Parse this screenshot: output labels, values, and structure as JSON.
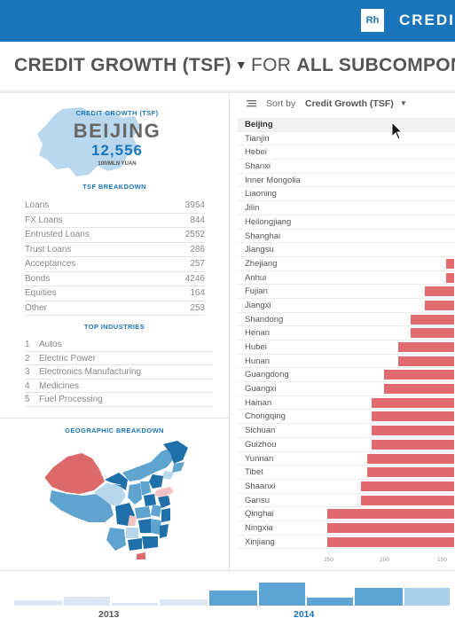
{
  "brand": {
    "logo": "Rh",
    "title": "CREDIT"
  },
  "title": {
    "metric": "CREDIT GROWTH (TSF)",
    "caret": "▼",
    "for_text": "FOR",
    "scope": "ALL SUBCOMPON"
  },
  "province_card": {
    "caption": "CREDIT GROWTH (TSF)",
    "name": "BEIJING",
    "value": "12,556",
    "unit": "100/MLN YUAN"
  },
  "tsf_breakdown": {
    "heading": "TSF BREAKDOWN",
    "rows": [
      {
        "label": "Loans",
        "value": "3954"
      },
      {
        "label": "FX Loans",
        "value": "844"
      },
      {
        "label": "Entrusted Loans",
        "value": "2552"
      },
      {
        "label": "Trust Loans",
        "value": "286"
      },
      {
        "label": "Acceptances",
        "value": "257"
      },
      {
        "label": "Bonds",
        "value": "4246"
      },
      {
        "label": "Equities",
        "value": "164"
      },
      {
        "label": "Other",
        "value": "253"
      }
    ]
  },
  "top_industries": {
    "heading": "TOP INDUSTRIES",
    "rows": [
      {
        "num": "1",
        "name": "Autos"
      },
      {
        "num": "2",
        "name": "Electric Power"
      },
      {
        "num": "3",
        "name": "Electronics Manufacturing"
      },
      {
        "num": "4",
        "name": "Medicines"
      },
      {
        "num": "5",
        "name": "Fuel Processing"
      }
    ]
  },
  "geo": {
    "heading": "GEOGRAPHIC BREAKDOWN"
  },
  "sort": {
    "label": "Sort by",
    "value": "Credit Growth (TSF)",
    "caret": "▼"
  },
  "provinces": [
    {
      "name": "Beijing",
      "bar": 0,
      "active": true
    },
    {
      "name": "Tianjin",
      "bar": 0
    },
    {
      "name": "Hebei",
      "bar": 0
    },
    {
      "name": "Shanxi",
      "bar": 0
    },
    {
      "name": "Inner Mongolia",
      "bar": 0
    },
    {
      "name": "Liaoning",
      "bar": 0
    },
    {
      "name": "Jilin",
      "bar": 0
    },
    {
      "name": "Heilongjiang",
      "bar": 0
    },
    {
      "name": "Shanghai",
      "bar": 0
    },
    {
      "name": "Jiangsu",
      "bar": 0
    },
    {
      "name": "Zhejiang",
      "bar": 9
    },
    {
      "name": "Anhui",
      "bar": 9
    },
    {
      "name": "Fujian",
      "bar": 33
    },
    {
      "name": "Jiangxi",
      "bar": 33
    },
    {
      "name": "Shandong",
      "bar": 49
    },
    {
      "name": "Henan",
      "bar": 49
    },
    {
      "name": "Hubei",
      "bar": 63
    },
    {
      "name": "Hunan",
      "bar": 63
    },
    {
      "name": "Guangdong",
      "bar": 79
    },
    {
      "name": "Guangxi",
      "bar": 79
    },
    {
      "name": "Hainan",
      "bar": 93
    },
    {
      "name": "Chongqing",
      "bar": 93
    },
    {
      "name": "Sichuan",
      "bar": 93
    },
    {
      "name": "Guizhou",
      "bar": 93
    },
    {
      "name": "Yunnan",
      "bar": 98
    },
    {
      "name": "Tibet",
      "bar": 98
    },
    {
      "name": "Shaanxi",
      "bar": 105
    },
    {
      "name": "Gansu",
      "bar": 105
    },
    {
      "name": "Qinghai",
      "bar": 143
    },
    {
      "name": "Ningxia",
      "bar": 143
    },
    {
      "name": "Xinjiang",
      "bar": 143
    }
  ],
  "axis_ticks": [
    "250",
    "200",
    "150"
  ],
  "timeline": {
    "years": [
      "2013",
      "2014"
    ],
    "colors": {
      "past": "#dbe8f3",
      "current": "#5da3d3",
      "current_light": "#a9cfea",
      "year_2013": "#555555",
      "year_2014": "#1b75bb"
    }
  },
  "colors": {
    "primary": "#1b75bb",
    "bar": "#e06a6d",
    "map_dark": "#1f6fa8",
    "map_mid": "#5fa3cf",
    "map_light": "#b7d7ec",
    "map_pink": "#f2c1c3",
    "map_red": "#dd6a6b"
  }
}
